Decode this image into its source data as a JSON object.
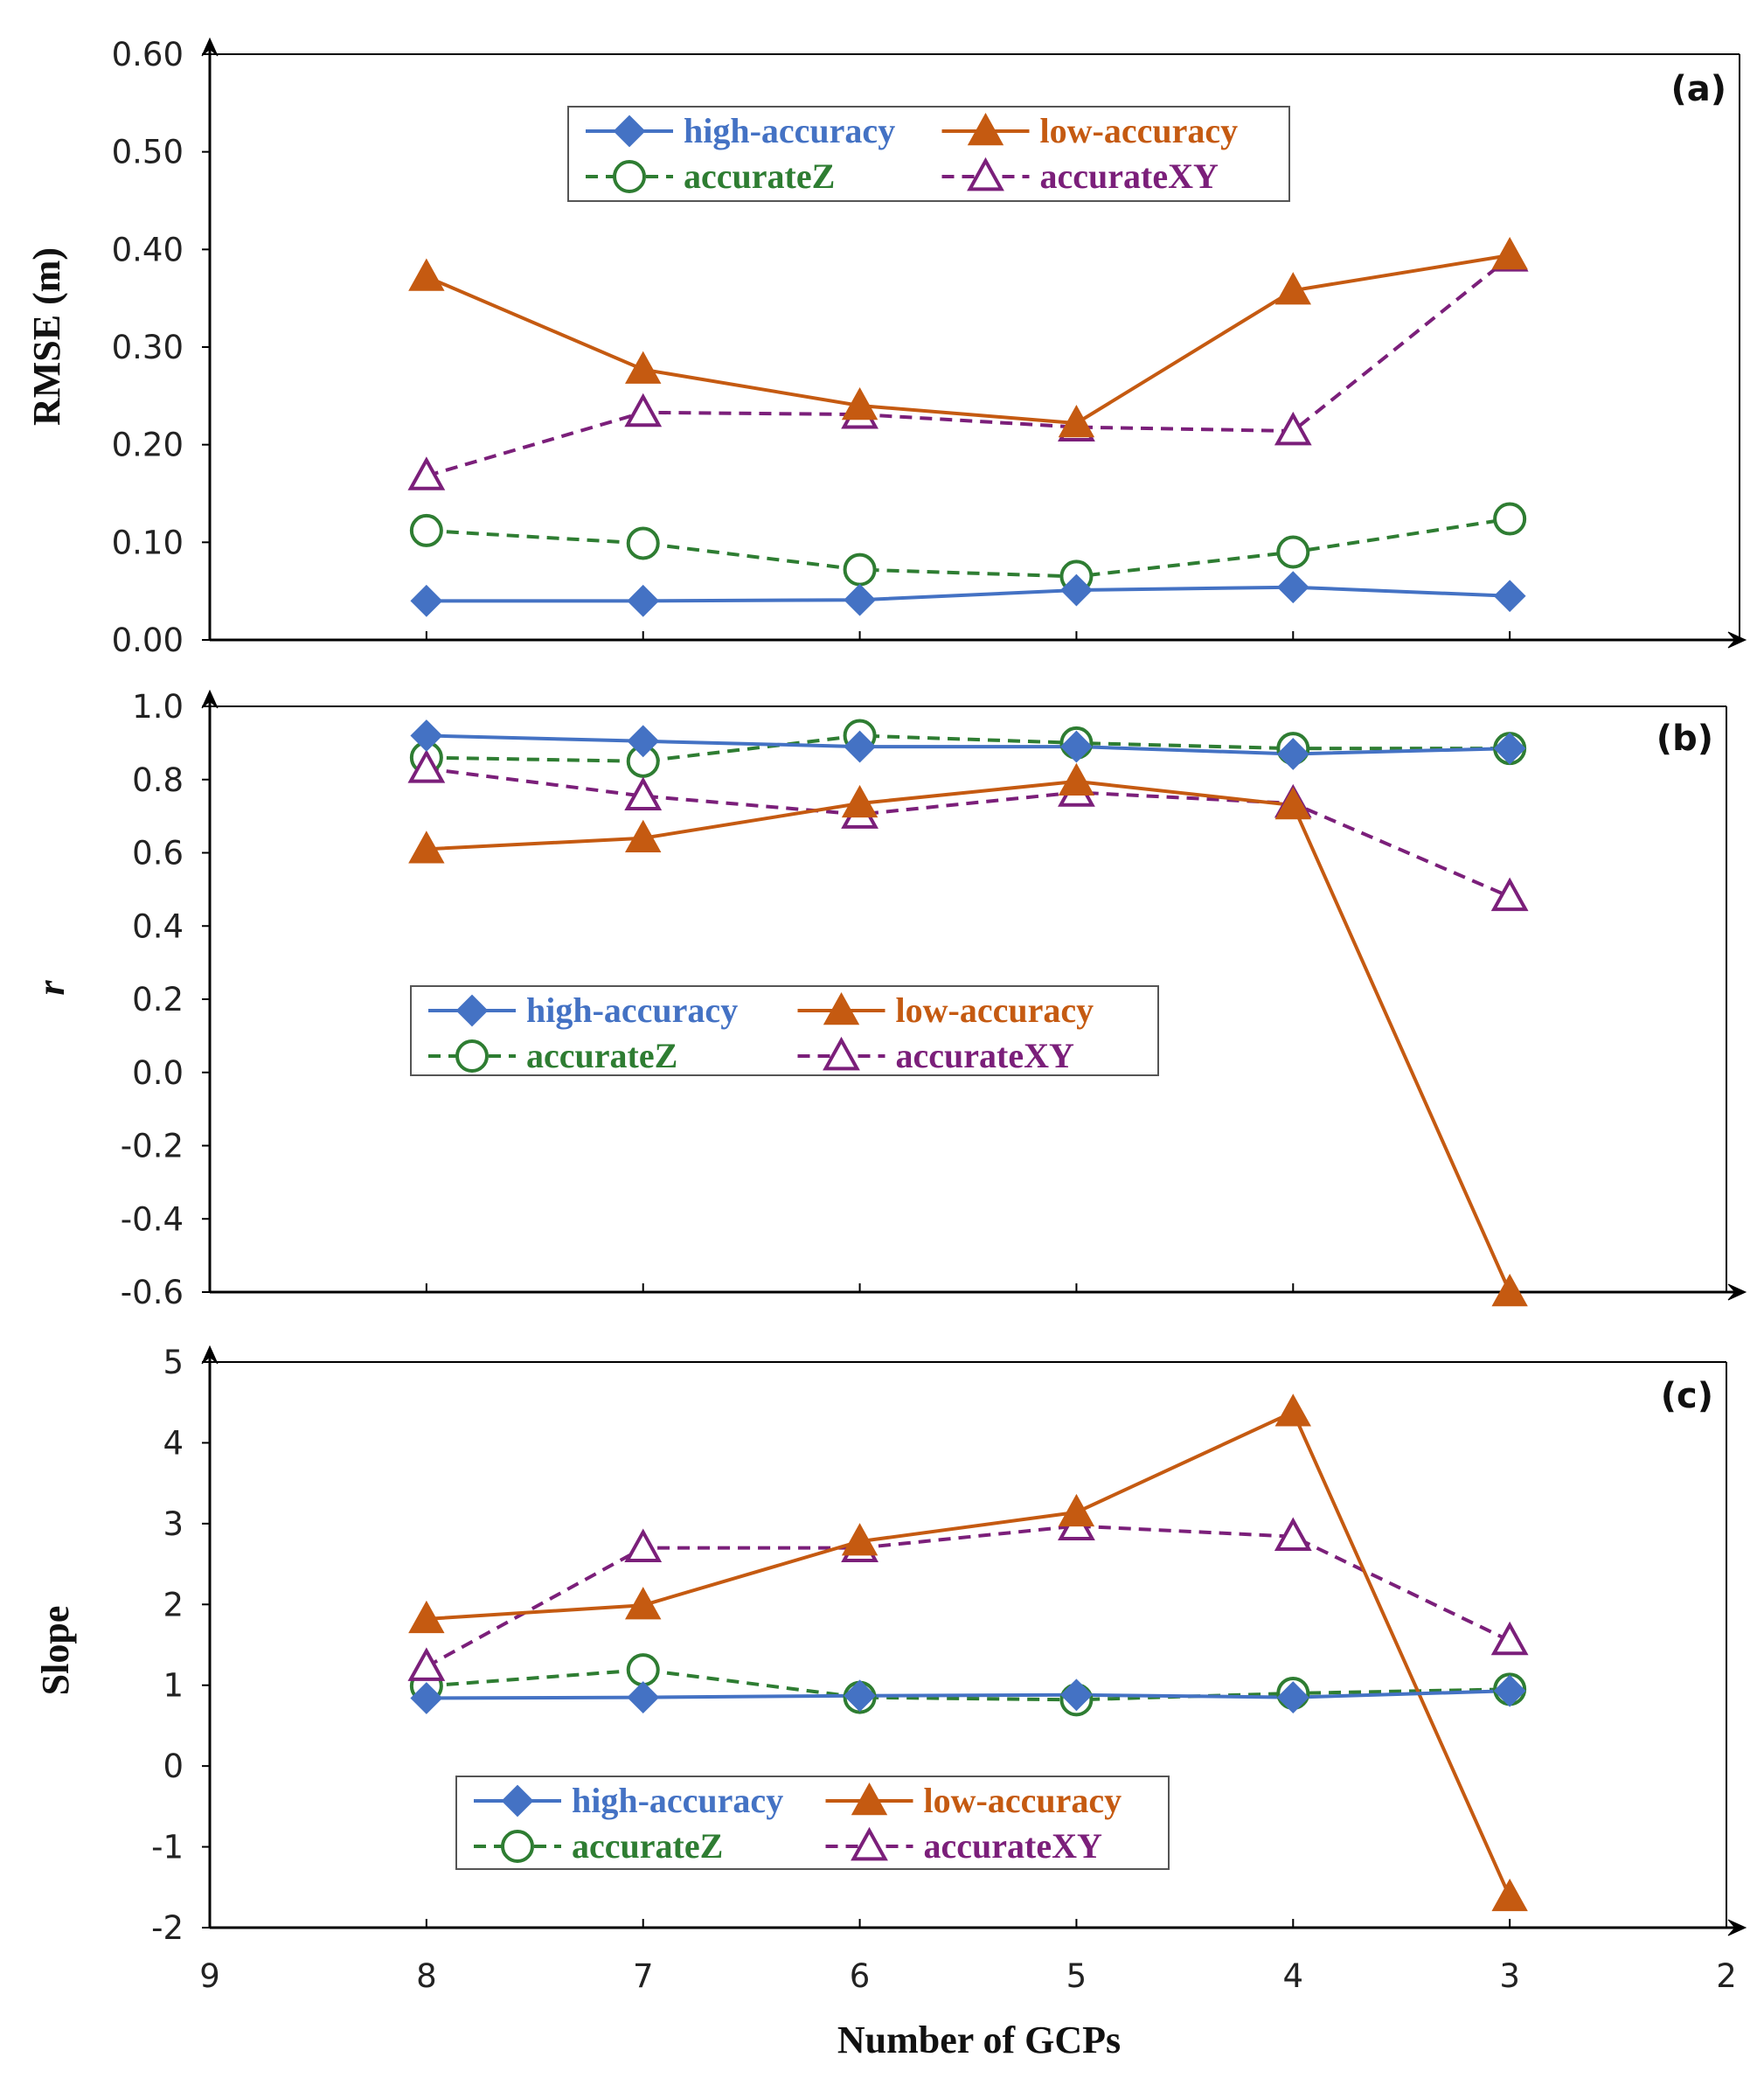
{
  "chart_data": [
    {
      "type": "line",
      "panel": "(a)",
      "ylabel": "RMSE (m)",
      "ylim": [
        0,
        0.6
      ],
      "yticks": [
        "0.00",
        "0.10",
        "0.20",
        "0.30",
        "0.40",
        "0.50",
        "0.60"
      ],
      "xlim": [
        9,
        2
      ],
      "x": [
        8,
        7,
        6,
        5,
        4,
        3
      ],
      "series": [
        {
          "name": "high-accuracy",
          "values": [
            0.04,
            0.04,
            0.041,
            0.051,
            0.054,
            0.045
          ]
        },
        {
          "name": "low-accuracy",
          "values": [
            0.372,
            0.277,
            0.24,
            0.222,
            0.358,
            0.394
          ]
        },
        {
          "name": "accurateZ",
          "values": [
            0.112,
            0.099,
            0.072,
            0.065,
            0.09,
            0.124
          ]
        },
        {
          "name": "accurateXY",
          "values": [
            0.168,
            0.233,
            0.231,
            0.218,
            0.214,
            0.392
          ]
        }
      ],
      "legend_position": "top-center"
    },
    {
      "type": "line",
      "panel": "(b)",
      "ylabel": "r",
      "ylim": [
        -0.6,
        1.0
      ],
      "yticks": [
        "-0.6",
        "-0.4",
        "-0.2",
        "0.0",
        "0.2",
        "0.4",
        "0.6",
        "0.8",
        "1.0"
      ],
      "xlim": [
        9,
        2
      ],
      "x": [
        8,
        7,
        6,
        5,
        4,
        3
      ],
      "series": [
        {
          "name": "high-accuracy",
          "values": [
            0.92,
            0.905,
            0.89,
            0.89,
            0.87,
            0.885
          ]
        },
        {
          "name": "low-accuracy",
          "values": [
            0.61,
            0.64,
            0.735,
            0.795,
            0.73,
            -0.6
          ]
        },
        {
          "name": "accurateZ",
          "values": [
            0.86,
            0.85,
            0.92,
            0.9,
            0.885,
            0.885
          ]
        },
        {
          "name": "accurateXY",
          "values": [
            0.83,
            0.755,
            0.705,
            0.765,
            0.735,
            0.48
          ]
        }
      ],
      "legend_position": "center-left"
    },
    {
      "type": "line",
      "panel": "(c)",
      "ylabel": "Slope",
      "xlabel": "Number of GCPs",
      "ylim": [
        -2,
        5
      ],
      "yticks": [
        "-2",
        "-1",
        "0",
        "1",
        "2",
        "3",
        "4",
        "5"
      ],
      "xlim": [
        9,
        2
      ],
      "xticks": [
        "9",
        "8",
        "7",
        "6",
        "5",
        "4",
        "3",
        "2"
      ],
      "x": [
        8,
        7,
        6,
        5,
        4,
        3
      ],
      "series": [
        {
          "name": "high-accuracy",
          "values": [
            0.84,
            0.85,
            0.87,
            0.88,
            0.85,
            0.93
          ]
        },
        {
          "name": "low-accuracy",
          "values": [
            1.82,
            1.99,
            2.78,
            3.14,
            4.38,
            -1.62
          ]
        },
        {
          "name": "accurateZ",
          "values": [
            0.99,
            1.19,
            0.85,
            0.82,
            0.9,
            0.95
          ]
        },
        {
          "name": "accurateXY",
          "values": [
            1.23,
            2.7,
            2.7,
            2.97,
            2.84,
            1.55
          ]
        }
      ],
      "legend_position": "bottom-center"
    }
  ],
  "styles": {
    "high-accuracy": {
      "color": "#4472C4",
      "marker": "diamond",
      "dash": "solid"
    },
    "low-accuracy": {
      "color": "#C55A11",
      "marker": "triangle-filled",
      "dash": "solid"
    },
    "accurateZ": {
      "color": "#2E7D32",
      "marker": "circle-open",
      "dash": "dashed"
    },
    "accurateXY": {
      "color": "#7B1F7A",
      "marker": "triangle-open",
      "dash": "dashed"
    }
  },
  "legend_order": [
    "high-accuracy",
    "low-accuracy",
    "accurateZ",
    "accurateXY"
  ]
}
